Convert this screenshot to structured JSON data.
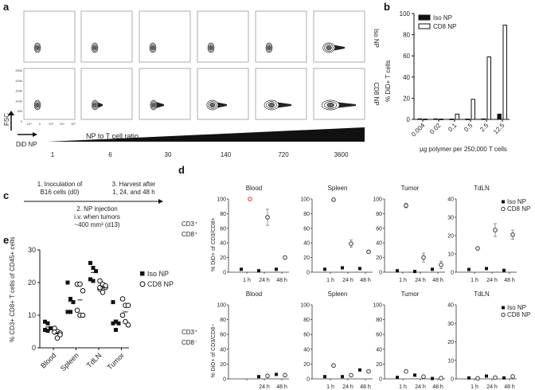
{
  "panels": {
    "a": {
      "label": "a",
      "row_labels": [
        "Iso NP",
        "CD8 NP"
      ],
      "ratio_title": "NP to T cell ratio",
      "ratios": [
        "1",
        "6",
        "30",
        "140",
        "720",
        "3600"
      ],
      "y_axis": "FSC",
      "x_axis": "DiD NP",
      "fsc_ticks": [
        "250k",
        "200k",
        "150k",
        "100k",
        "50k",
        "0"
      ],
      "did_ticks": [
        "-10³",
        "0",
        "10³",
        "10⁴",
        "10⁵"
      ]
    },
    "c": {
      "label": "c",
      "step1": [
        "1. Inoculation of",
        "B16 cells (d0)"
      ],
      "step3": [
        "3. Harvest after",
        "1, 24, and 48 h"
      ],
      "step2": [
        "2. NP injection",
        "i.v. when tumors",
        "~400 mm³ (d13)"
      ]
    },
    "d": {
      "label": "d",
      "row_labels": [
        [
          "CD3⁺",
          "CD8⁺"
        ],
        [
          "CD3⁺",
          "CD8⁻"
        ]
      ]
    },
    "e": {
      "label": "e"
    },
    "b": {
      "label": "b"
    }
  },
  "colors": {
    "iso": "#111111",
    "cd8_fill": "#ffffff",
    "highlight": "#e8312f"
  },
  "chart_data": [
    {
      "id": "b",
      "type": "bar",
      "categories": [
        "0.004",
        "0.02",
        "0.1",
        "0.5",
        "2.5",
        "12.5"
      ],
      "series": [
        {
          "name": "Iso NP",
          "values": [
            0.5,
            0.5,
            0.3,
            0.3,
            0.5,
            5
          ]
        },
        {
          "name": "CD8 NP",
          "values": [
            0.3,
            0.3,
            5,
            19,
            59,
            89
          ]
        }
      ],
      "xlabel": "µg polymer per 250,000 T cells",
      "ylabel": "% DiD+ T cells",
      "ylim": [
        0,
        100
      ],
      "yticks": [
        "0",
        "20",
        "40",
        "60",
        "80",
        "100"
      ],
      "legend": "top-left"
    },
    {
      "id": "d",
      "type": "scatter",
      "x": [
        "1 h",
        "24 h",
        "48 h"
      ],
      "ylabel_top": "% DiD+ of CD3/CD8+",
      "ylabel_bottom": "% DiD+ of CD3/CD8−",
      "legend": [
        "Iso NP",
        "CD8 NP"
      ],
      "rows": [
        [
          {
            "title": "Blood",
            "ylim": [
              0,
              100
            ],
            "yticks": [
              "0",
              "20",
              "40",
              "60",
              "80",
              "100"
            ],
            "iso": [
              4,
              2,
              4
            ],
            "cd8": [
              100,
              75,
              20
            ],
            "cd8_err": [
              0,
              11,
              2
            ],
            "highlight": [
              true,
              false,
              false
            ]
          },
          {
            "title": "Spleen",
            "ylim": [
              0,
              100
            ],
            "yticks": [
              "0",
              "20",
              "40",
              "60",
              "80",
              "100"
            ],
            "iso": [
              4,
              6,
              5
            ],
            "cd8": [
              99,
              39,
              28
            ],
            "cd8_err": [
              1,
              5,
              2
            ]
          },
          {
            "title": "Tumor",
            "ylim": [
              0,
              100
            ],
            "yticks": [
              "0",
              "20",
              "40",
              "60",
              "80",
              "100"
            ],
            "iso": [
              2,
              1,
              4
            ],
            "cd8": [
              91,
              20,
              10
            ],
            "cd8_err": [
              3,
              6,
              5
            ]
          },
          {
            "title": "TdLN",
            "ylim": [
              0,
              40
            ],
            "yticks": [
              "0",
              "10",
              "20",
              "30",
              "40"
            ],
            "iso": [
              1.5,
              2,
              1
            ],
            "cd8": [
              13,
              23,
              20.5
            ],
            "cd8_err": [
              0.5,
              3.5,
              2.5
            ]
          }
        ],
        [
          {
            "title": "Blood",
            "ylim": [
              0,
              100
            ],
            "yticks": [
              "0",
              "20",
              "40",
              "60",
              "80",
              "100"
            ],
            "iso": [
              null,
              3,
              6
            ],
            "cd8": [
              null,
              4,
              5
            ],
            "xlabels": [
              "",
              "24 h",
              "48 h"
            ]
          },
          {
            "title": "Spleen",
            "ylim": [
              0,
              100
            ],
            "yticks": [
              "0",
              "20",
              "40",
              "60",
              "80",
              "100"
            ],
            "iso": [
              3,
              3,
              12
            ],
            "cd8": [
              18,
              5,
              10
            ]
          },
          {
            "title": "Tumor",
            "ylim": [
              0,
              100
            ],
            "yticks": [
              "0",
              "20",
              "40",
              "60",
              "80",
              "100"
            ],
            "iso": [
              2,
              5,
              0.5
            ],
            "cd8": [
              10,
              3,
              1
            ]
          },
          {
            "title": "TdLN",
            "ylim": [
              0,
              40
            ],
            "yticks": [
              "0",
              "10",
              "20",
              "30",
              "40"
            ],
            "iso": [
              0.5,
              1.5,
              0.5
            ],
            "cd8": [
              0.3,
              0.7,
              1.3
            ]
          }
        ]
      ]
    },
    {
      "id": "e",
      "type": "scatter",
      "categories": [
        "Blood",
        "Spleen",
        "TdLN",
        "Tumor"
      ],
      "series": [
        {
          "name": "Iso NP",
          "values": [
            [
              8,
              7.5,
              6,
              5.5,
              5.2,
              6
            ],
            [
              20,
              15,
              14,
              11,
              11
            ],
            [
              26,
              24.5,
              23.5,
              21,
              20.5
            ],
            [
              14,
              8,
              7.5,
              7.5,
              5.5
            ]
          ]
        },
        {
          "name": "CD8 NP",
          "values": [
            [
              6,
              5,
              4.5,
              4.8,
              3,
              4
            ],
            [
              19.5,
              19.5,
              17.5,
              11.5,
              10,
              10
            ],
            [
              20.5,
              19.5,
              18.5,
              18,
              17,
              19,
              18.5
            ],
            [
              15,
              13,
              13,
              10,
              8,
              7
            ]
          ]
        }
      ],
      "ylabel": "% CD3+ CD8+ T cells of CD45+ cells",
      "ylim": [
        0,
        30
      ],
      "yticks": [
        "0",
        "10",
        "20",
        "30"
      ],
      "legend": "right"
    }
  ]
}
